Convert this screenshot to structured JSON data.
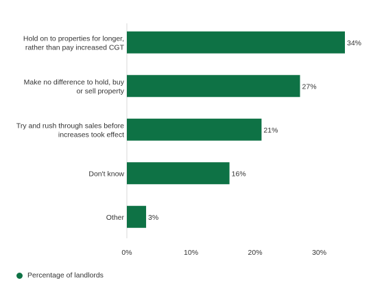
{
  "chart_data": {
    "type": "bar",
    "orientation": "horizontal",
    "categories": [
      [
        "Hold on to properties for longer,",
        "rather than pay increased CGT"
      ],
      [
        "Make no difference to hold, buy",
        "or sell property"
      ],
      [
        "Try and rush through sales before",
        "increases took effect"
      ],
      [
        "Don't know"
      ],
      [
        "Other"
      ]
    ],
    "series": [
      {
        "name": "Percentage of landlords",
        "values": [
          34,
          27,
          21,
          16,
          3
        ],
        "color": "#0e7245"
      }
    ],
    "value_labels": [
      "34%",
      "27%",
      "21%",
      "16%",
      "3%"
    ],
    "xlim": [
      0,
      34
    ],
    "xticks": [
      0,
      10,
      20,
      30
    ],
    "xtick_labels": [
      "0%",
      "10%",
      "20%",
      "30%"
    ],
    "grid": false,
    "legend_position": "bottom-left"
  }
}
